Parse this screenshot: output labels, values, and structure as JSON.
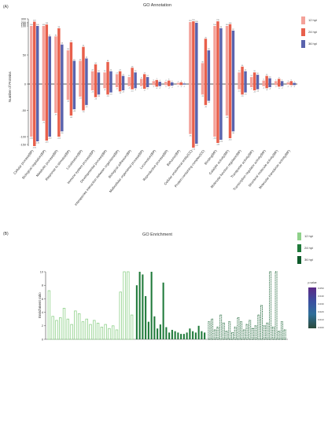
{
  "figure": {
    "panel_a_label": "(A)",
    "panel_b_label": "(B)"
  },
  "chart_data": [
    {
      "type": "bar",
      "title": "GO Annotation",
      "ylabel": "Number of Proteins",
      "yticks": [
        "300",
        "200",
        "150",
        "100",
        "50",
        "0",
        "-50",
        "-100",
        "-150"
      ],
      "legend_position": "top-right",
      "series": [
        {
          "name": "12 hpi",
          "color": "#f4a199"
        },
        {
          "name": "24 hpi",
          "color": "#e8604c"
        },
        {
          "name": "36 hpi",
          "color": "#5a63ad"
        }
      ],
      "categories": [
        "Cellular process(BP)",
        "Biological regulation(BP)",
        "Metabolic process(BP)",
        "Response to stimulus(BP)",
        "Localization(BP)",
        "Immune system process(BP)",
        "Developmental process(BP)",
        "Interspecies interaction between organisms(BP)",
        "Biological adhesion(BP)",
        "Multicellular organismal process(BP)",
        "Locomotion(BP)",
        "Reproductive process(BP)",
        "Behavior(BP)",
        "Cellular anatomical entity(CC)",
        "Protein-containing complex(CC)",
        "Binding(MF)",
        "Catalytic activity(MF)",
        "Molecular function regulator(MF)",
        "Transporter activity(MF)",
        "Transcription regulator activity(MF)",
        "Structural molecule activity(MF)",
        "Molecular transducer activity(MF)"
      ],
      "up": [
        [
          100,
          100,
          82,
          58,
          40,
          22,
          20,
          17,
          12,
          9,
          5,
          4,
          2,
          210,
          36,
          100,
          100,
          20,
          12,
          6,
          5,
          3
        ],
        [
          220,
          140,
          96,
          72,
          64,
          34,
          38,
          22,
          28,
          17,
          7,
          6,
          3,
          230,
          78,
          230,
          150,
          30,
          20,
          14,
          9,
          5
        ],
        [
          100,
          82,
          68,
          40,
          44,
          20,
          22,
          14,
          20,
          12,
          4,
          3,
          1,
          190,
          58,
          96,
          92,
          22,
          16,
          10,
          5,
          2
        ]
      ],
      "down": [
        [
          -100,
          -70,
          -55,
          -30,
          -24,
          -12,
          -8,
          -6,
          -4,
          -4,
          -2,
          -2,
          -1,
          -95,
          -20,
          -100,
          -60,
          -10,
          -6,
          -4,
          -2,
          -1
        ],
        [
          -160,
          -125,
          -100,
          -60,
          -50,
          -25,
          -20,
          -14,
          -10,
          -9,
          -5,
          -4,
          -2,
          -170,
          -40,
          -140,
          -110,
          -20,
          -12,
          -8,
          -5,
          -2
        ],
        [
          -130,
          -100,
          -90,
          -48,
          -40,
          -20,
          -16,
          -12,
          -8,
          -6,
          -4,
          -3,
          -1,
          -145,
          -32,
          -120,
          -90,
          -16,
          -10,
          -6,
          -4,
          -2
        ]
      ]
    },
    {
      "type": "bar",
      "title": "GO Enrichment",
      "ylabel": "Enrichment ratio",
      "ylim": [
        0,
        10
      ],
      "yticks": [
        "10",
        "8",
        "6",
        "4",
        "2",
        "0"
      ],
      "legend_position": "top-right",
      "series": [
        {
          "name": "12 hpi",
          "color": "#8fd18a"
        },
        {
          "name": "24 hpi",
          "color": "#1f7a3a"
        },
        {
          "name": "36 hpi",
          "color": "#0e5a2a"
        }
      ],
      "colorbar": {
        "title": "p-value",
        "ticks": [
          "0.050",
          "0.040",
          "0.030",
          "0.020",
          "0.010",
          "0.000"
        ]
      },
      "values": [
        [
          7.2,
          3.4,
          2.8,
          3.2,
          4.6,
          3.0,
          2.2,
          4.2,
          3.8,
          2.6,
          3.0,
          2.2,
          2.8,
          2.4,
          1.8,
          2.2,
          1.6,
          2.0,
          1.4,
          7.0,
          10,
          10,
          3.6
        ],
        [
          8,
          10,
          9.6,
          6.4,
          2.6,
          10,
          3.4,
          1.6,
          2.2,
          8.4,
          1.8,
          1.0,
          1.4,
          1.2,
          1.0,
          0.8,
          0.8,
          1.0,
          1.6,
          1.2,
          1.0,
          2.0,
          1.2,
          1.0
        ],
        [
          2.6,
          3.0,
          1.4,
          1.8,
          3.6,
          2.4,
          1.2,
          2.6,
          1.0,
          1.8,
          3.2,
          2.6,
          1.4,
          2.2,
          2.8,
          1.6,
          2.0,
          3.6,
          5.0,
          2.0,
          2.4,
          10,
          1.8,
          10,
          1.2,
          2.6,
          1.4
        ]
      ]
    }
  ]
}
